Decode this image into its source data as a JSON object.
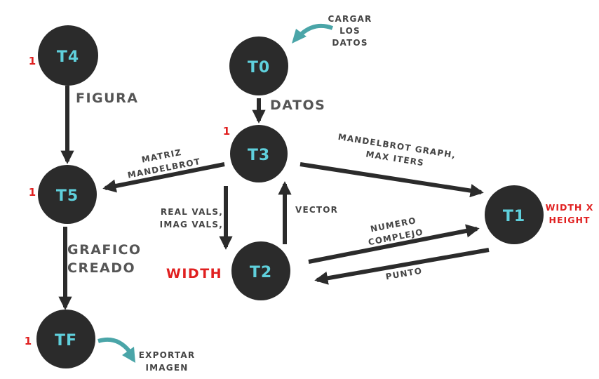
{
  "nodes": {
    "t0": {
      "label": "T0"
    },
    "t1": {
      "label": "T1"
    },
    "t2": {
      "label": "T2"
    },
    "t3": {
      "label": "T3"
    },
    "t4": {
      "label": "T4"
    },
    "t5": {
      "label": "T5"
    },
    "tf": {
      "label": "TF"
    }
  },
  "counts": {
    "t4": "1",
    "t3": "1",
    "t5": "1",
    "tf": "1"
  },
  "edge_labels": {
    "figura": "FIGURA",
    "datos": "DATOS",
    "matriz_1": "MATRIZ",
    "matriz_2": "MANDELBROT",
    "mandelbrot_1": "MANDELBROT GRAPH,",
    "mandelbrot_2": "MAX ITERS",
    "real_1": "REAL VALS,",
    "real_2": "IMAG VALS,",
    "vector": "VECTOR",
    "numero_1": "NUMERO",
    "numero_2": "COMPLEJO",
    "punto": "PUNTO",
    "grafico_1": "GRAFICO",
    "grafico_2": "CREADO"
  },
  "annotations": {
    "cargar_1": "CARGAR",
    "cargar_2": "LOS",
    "cargar_3": "DATOS",
    "exportar_1": "EXPORTAR",
    "exportar_2": "IMAGEN",
    "width": "WIDTH",
    "width_height_1": "WIDTH X",
    "width_height_2": "HEIGHT"
  },
  "colors": {
    "node_fill": "#2b2b2b",
    "node_text": "#5fd0dc",
    "arrow": "#2b2b2b",
    "count_red": "#e02020",
    "io_arrow": "#4aa5a8",
    "label_gray": "#555555"
  }
}
